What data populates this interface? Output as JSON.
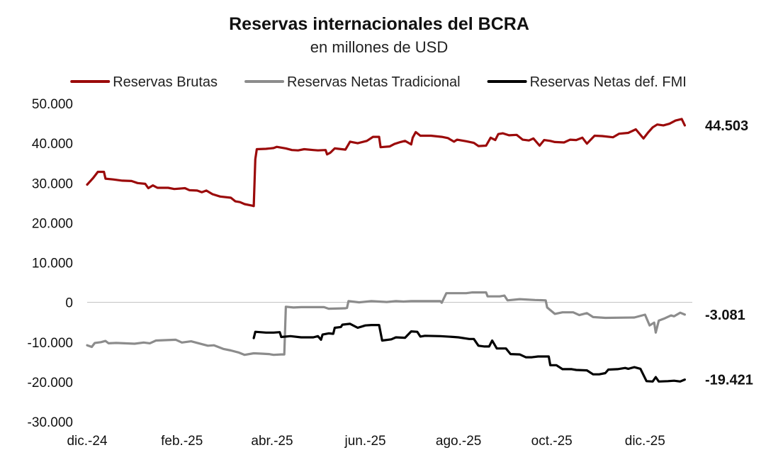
{
  "chart_data": {
    "type": "line",
    "title": "Reservas internacionales del BCRA",
    "subtitle": "en millones de USD",
    "xlabel": "",
    "ylabel": "",
    "ylim": [
      -30000,
      50000
    ],
    "y_ticks": [
      50000,
      40000,
      30000,
      20000,
      10000,
      0,
      -10000,
      -20000,
      -30000
    ],
    "y_tick_labels": [
      "50.000",
      "40.000",
      "30.000",
      "20.000",
      "10.000",
      "0",
      "-10.000",
      "-20.000",
      "-30.000"
    ],
    "x_ticks": [
      "2024-12-01",
      "2025-02-01",
      "2025-04-01",
      "2025-06-01",
      "2025-08-01",
      "2025-10-01",
      "2025-12-01"
    ],
    "x_tick_labels": [
      "dic.-24",
      "feb.-25",
      "abr.-25",
      "jun.-25",
      "ago.-25",
      "oct.-25",
      "dic.-25"
    ],
    "xlim": [
      "2024-12-01",
      "2025-12-31"
    ],
    "grid": false,
    "legend_position": "top",
    "series": [
      {
        "name": "Reservas Brutas",
        "color": "#9b0a0a",
        "end_label": "44.503",
        "points": [
          [
            "2024-12-01",
            29600
          ],
          [
            "2024-12-05",
            31300
          ],
          [
            "2024-12-08",
            32800
          ],
          [
            "2024-12-12",
            32800
          ],
          [
            "2024-12-13",
            31100
          ],
          [
            "2024-12-18",
            30900
          ],
          [
            "2024-12-24",
            30600
          ],
          [
            "2024-12-30",
            30500
          ],
          [
            "2025-01-03",
            30000
          ],
          [
            "2025-01-08",
            29800
          ],
          [
            "2025-01-10",
            28700
          ],
          [
            "2025-01-13",
            29400
          ],
          [
            "2025-01-16",
            28800
          ],
          [
            "2025-01-23",
            28800
          ],
          [
            "2025-01-27",
            28500
          ],
          [
            "2025-02-03",
            28700
          ],
          [
            "2025-02-06",
            28200
          ],
          [
            "2025-02-11",
            28100
          ],
          [
            "2025-02-14",
            27700
          ],
          [
            "2025-02-17",
            28100
          ],
          [
            "2025-02-21",
            27200
          ],
          [
            "2025-02-26",
            26600
          ],
          [
            "2025-03-05",
            26300
          ],
          [
            "2025-03-08",
            25400
          ],
          [
            "2025-03-11",
            25200
          ],
          [
            "2025-03-14",
            24700
          ],
          [
            "2025-03-19",
            24300
          ],
          [
            "2025-03-20",
            24200
          ],
          [
            "2025-03-21",
            36000
          ],
          [
            "2025-03-22",
            38500
          ],
          [
            "2025-03-28",
            38600
          ],
          [
            "2025-04-02",
            38800
          ],
          [
            "2025-04-04",
            39100
          ],
          [
            "2025-04-10",
            38700
          ],
          [
            "2025-04-14",
            38300
          ],
          [
            "2025-04-18",
            38200
          ],
          [
            "2025-04-22",
            38500
          ],
          [
            "2025-04-28",
            38300
          ],
          [
            "2025-05-01",
            38200
          ],
          [
            "2025-05-06",
            38300
          ],
          [
            "2025-05-07",
            37200
          ],
          [
            "2025-05-09",
            37600
          ],
          [
            "2025-05-12",
            38700
          ],
          [
            "2025-05-19",
            38400
          ],
          [
            "2025-05-22",
            40400
          ],
          [
            "2025-05-27",
            40000
          ],
          [
            "2025-06-02",
            40600
          ],
          [
            "2025-06-06",
            41600
          ],
          [
            "2025-06-10",
            41600
          ],
          [
            "2025-06-11",
            39000
          ],
          [
            "2025-06-17",
            39200
          ],
          [
            "2025-06-20",
            39800
          ],
          [
            "2025-06-24",
            40300
          ],
          [
            "2025-06-27",
            40600
          ],
          [
            "2025-07-01",
            39700
          ],
          [
            "2025-07-02",
            41400
          ],
          [
            "2025-07-04",
            42800
          ],
          [
            "2025-07-07",
            41900
          ],
          [
            "2025-07-14",
            41900
          ],
          [
            "2025-07-21",
            41600
          ],
          [
            "2025-07-25",
            41300
          ],
          [
            "2025-07-29",
            40400
          ],
          [
            "2025-07-31",
            40900
          ],
          [
            "2025-08-06",
            40500
          ],
          [
            "2025-08-11",
            40100
          ],
          [
            "2025-08-14",
            39300
          ],
          [
            "2025-08-19",
            39400
          ],
          [
            "2025-08-22",
            41400
          ],
          [
            "2025-08-25",
            40800
          ],
          [
            "2025-08-27",
            42300
          ],
          [
            "2025-08-30",
            42500
          ],
          [
            "2025-09-03",
            42000
          ],
          [
            "2025-09-08",
            42100
          ],
          [
            "2025-09-12",
            40900
          ],
          [
            "2025-09-16",
            40700
          ],
          [
            "2025-09-19",
            41200
          ],
          [
            "2025-09-23",
            39400
          ],
          [
            "2025-09-26",
            40800
          ],
          [
            "2025-09-30",
            40600
          ],
          [
            "2025-10-03",
            40300
          ],
          [
            "2025-10-09",
            40200
          ],
          [
            "2025-10-13",
            40900
          ],
          [
            "2025-10-17",
            40800
          ],
          [
            "2025-10-21",
            41400
          ],
          [
            "2025-10-24",
            39900
          ],
          [
            "2025-10-29",
            41900
          ],
          [
            "2025-11-03",
            41800
          ],
          [
            "2025-11-10",
            41500
          ],
          [
            "2025-11-14",
            42400
          ],
          [
            "2025-11-20",
            42600
          ],
          [
            "2025-11-25",
            43500
          ],
          [
            "2025-11-30",
            41200
          ],
          [
            "2025-12-03",
            42700
          ],
          [
            "2025-12-06",
            44000
          ],
          [
            "2025-12-09",
            44700
          ],
          [
            "2025-12-13",
            44500
          ],
          [
            "2025-12-17",
            44900
          ],
          [
            "2025-12-21",
            45700
          ],
          [
            "2025-12-25",
            46100
          ],
          [
            "2025-12-27",
            44503
          ]
        ]
      },
      {
        "name": "Reservas Netas Tradicional",
        "color": "#8c8c8c",
        "end_label": "-3.081",
        "points": [
          [
            "2024-12-01",
            -10800
          ],
          [
            "2024-12-04",
            -11200
          ],
          [
            "2024-12-06",
            -10200
          ],
          [
            "2024-12-10",
            -10000
          ],
          [
            "2024-12-13",
            -9700
          ],
          [
            "2024-12-15",
            -10300
          ],
          [
            "2024-12-20",
            -10200
          ],
          [
            "2025-01-01",
            -10400
          ],
          [
            "2025-01-07",
            -10100
          ],
          [
            "2025-01-11",
            -10300
          ],
          [
            "2025-01-15",
            -9600
          ],
          [
            "2025-01-22",
            -9500
          ],
          [
            "2025-01-28",
            -9400
          ],
          [
            "2025-02-01",
            -10100
          ],
          [
            "2025-02-07",
            -9800
          ],
          [
            "2025-02-14",
            -10500
          ],
          [
            "2025-02-18",
            -10900
          ],
          [
            "2025-02-22",
            -10800
          ],
          [
            "2025-02-28",
            -11700
          ],
          [
            "2025-03-05",
            -12100
          ],
          [
            "2025-03-10",
            -12600
          ],
          [
            "2025-03-14",
            -13200
          ],
          [
            "2025-03-20",
            -12800
          ],
          [
            "2025-03-25",
            -12900
          ],
          [
            "2025-03-30",
            -13000
          ],
          [
            "2025-04-02",
            -13200
          ],
          [
            "2025-04-07",
            -13100
          ],
          [
            "2025-04-09",
            -13100
          ],
          [
            "2025-04-10",
            -1100
          ],
          [
            "2025-04-15",
            -1300
          ],
          [
            "2025-04-20",
            -1200
          ],
          [
            "2025-05-01",
            -1200
          ],
          [
            "2025-05-05",
            -1200
          ],
          [
            "2025-05-08",
            -1600
          ],
          [
            "2025-05-19",
            -1500
          ],
          [
            "2025-05-20",
            -1400
          ],
          [
            "2025-05-21",
            300
          ],
          [
            "2025-05-28",
            0
          ],
          [
            "2025-06-05",
            300
          ],
          [
            "2025-06-15",
            100
          ],
          [
            "2025-06-21",
            300
          ],
          [
            "2025-06-26",
            200
          ],
          [
            "2025-07-01",
            300
          ],
          [
            "2025-07-07",
            300
          ],
          [
            "2025-07-20",
            300
          ],
          [
            "2025-07-21",
            -100
          ],
          [
            "2025-07-24",
            2300
          ],
          [
            "2025-08-06",
            2300
          ],
          [
            "2025-08-10",
            2500
          ],
          [
            "2025-08-19",
            2500
          ],
          [
            "2025-08-20",
            1500
          ],
          [
            "2025-08-28",
            1500
          ],
          [
            "2025-08-31",
            1700
          ],
          [
            "2025-09-02",
            500
          ],
          [
            "2025-09-10",
            800
          ],
          [
            "2025-09-20",
            600
          ],
          [
            "2025-09-27",
            500
          ],
          [
            "2025-09-28",
            -1300
          ],
          [
            "2025-10-03",
            -2900
          ],
          [
            "2025-10-08",
            -2500
          ],
          [
            "2025-10-15",
            -2500
          ],
          [
            "2025-10-19",
            -3200
          ],
          [
            "2025-10-24",
            -2700
          ],
          [
            "2025-10-28",
            -3700
          ],
          [
            "2025-11-05",
            -3900
          ],
          [
            "2025-11-24",
            -3800
          ],
          [
            "2025-12-01",
            -3100
          ],
          [
            "2025-12-04",
            -5800
          ],
          [
            "2025-12-07",
            -5100
          ],
          [
            "2025-12-08",
            -7600
          ],
          [
            "2025-12-10",
            -4600
          ],
          [
            "2025-12-14",
            -4000
          ],
          [
            "2025-12-18",
            -3300
          ],
          [
            "2025-12-20",
            -3500
          ],
          [
            "2025-12-24",
            -2600
          ],
          [
            "2025-12-27",
            -3081
          ]
        ]
      },
      {
        "name": "Reservas Netas def. FMI",
        "color": "#000000",
        "end_label": "-19.421",
        "points": [
          [
            "2025-03-20",
            -9000
          ],
          [
            "2025-03-21",
            -7400
          ],
          [
            "2025-03-28",
            -7600
          ],
          [
            "2025-04-02",
            -7600
          ],
          [
            "2025-04-06",
            -7500
          ],
          [
            "2025-04-07",
            -8700
          ],
          [
            "2025-04-13",
            -8500
          ],
          [
            "2025-04-20",
            -8800
          ],
          [
            "2025-04-28",
            -8800
          ],
          [
            "2025-05-01",
            -8500
          ],
          [
            "2025-05-03",
            -9400
          ],
          [
            "2025-05-04",
            -8100
          ],
          [
            "2025-05-08",
            -7800
          ],
          [
            "2025-05-11",
            -7900
          ],
          [
            "2025-05-12",
            -6400
          ],
          [
            "2025-05-16",
            -6200
          ],
          [
            "2025-05-17",
            -5600
          ],
          [
            "2025-05-22",
            -5400
          ],
          [
            "2025-05-27",
            -6400
          ],
          [
            "2025-06-01",
            -5800
          ],
          [
            "2025-06-05",
            -5700
          ],
          [
            "2025-06-10",
            -5700
          ],
          [
            "2025-06-12",
            -9600
          ],
          [
            "2025-06-18",
            -9300
          ],
          [
            "2025-06-21",
            -8800
          ],
          [
            "2025-06-27",
            -8900
          ],
          [
            "2025-07-01",
            -7300
          ],
          [
            "2025-07-05",
            -7400
          ],
          [
            "2025-07-07",
            -8600
          ],
          [
            "2025-07-10",
            -8400
          ],
          [
            "2025-07-20",
            -8500
          ],
          [
            "2025-07-29",
            -8700
          ],
          [
            "2025-08-01",
            -8800
          ],
          [
            "2025-08-08",
            -9200
          ],
          [
            "2025-08-11",
            -9200
          ],
          [
            "2025-08-14",
            -10900
          ],
          [
            "2025-08-18",
            -11100
          ],
          [
            "2025-08-21",
            -11100
          ],
          [
            "2025-08-23",
            -9600
          ],
          [
            "2025-08-26",
            -11600
          ],
          [
            "2025-09-01",
            -11600
          ],
          [
            "2025-09-04",
            -13000
          ],
          [
            "2025-09-10",
            -13100
          ],
          [
            "2025-09-14",
            -13800
          ],
          [
            "2025-09-18",
            -13800
          ],
          [
            "2025-09-22",
            -13600
          ],
          [
            "2025-09-29",
            -13600
          ],
          [
            "2025-09-30",
            -15800
          ],
          [
            "2025-10-04",
            -15800
          ],
          [
            "2025-10-08",
            -16800
          ],
          [
            "2025-10-14",
            -16800
          ],
          [
            "2025-10-17",
            -17000
          ],
          [
            "2025-10-24",
            -17100
          ],
          [
            "2025-10-28",
            -18100
          ],
          [
            "2025-11-01",
            -18100
          ],
          [
            "2025-11-05",
            -17800
          ],
          [
            "2025-11-07",
            -16900
          ],
          [
            "2025-11-13",
            -16800
          ],
          [
            "2025-11-18",
            -16500
          ],
          [
            "2025-11-20",
            -16700
          ],
          [
            "2025-11-24",
            -16300
          ],
          [
            "2025-11-28",
            -16700
          ],
          [
            "2025-12-02",
            -19800
          ],
          [
            "2025-12-06",
            -19900
          ],
          [
            "2025-12-08",
            -18800
          ],
          [
            "2025-12-10",
            -19900
          ],
          [
            "2025-12-16",
            -19800
          ],
          [
            "2025-12-20",
            -19700
          ],
          [
            "2025-12-24",
            -19900
          ],
          [
            "2025-12-27",
            -19421
          ]
        ]
      }
    ]
  }
}
